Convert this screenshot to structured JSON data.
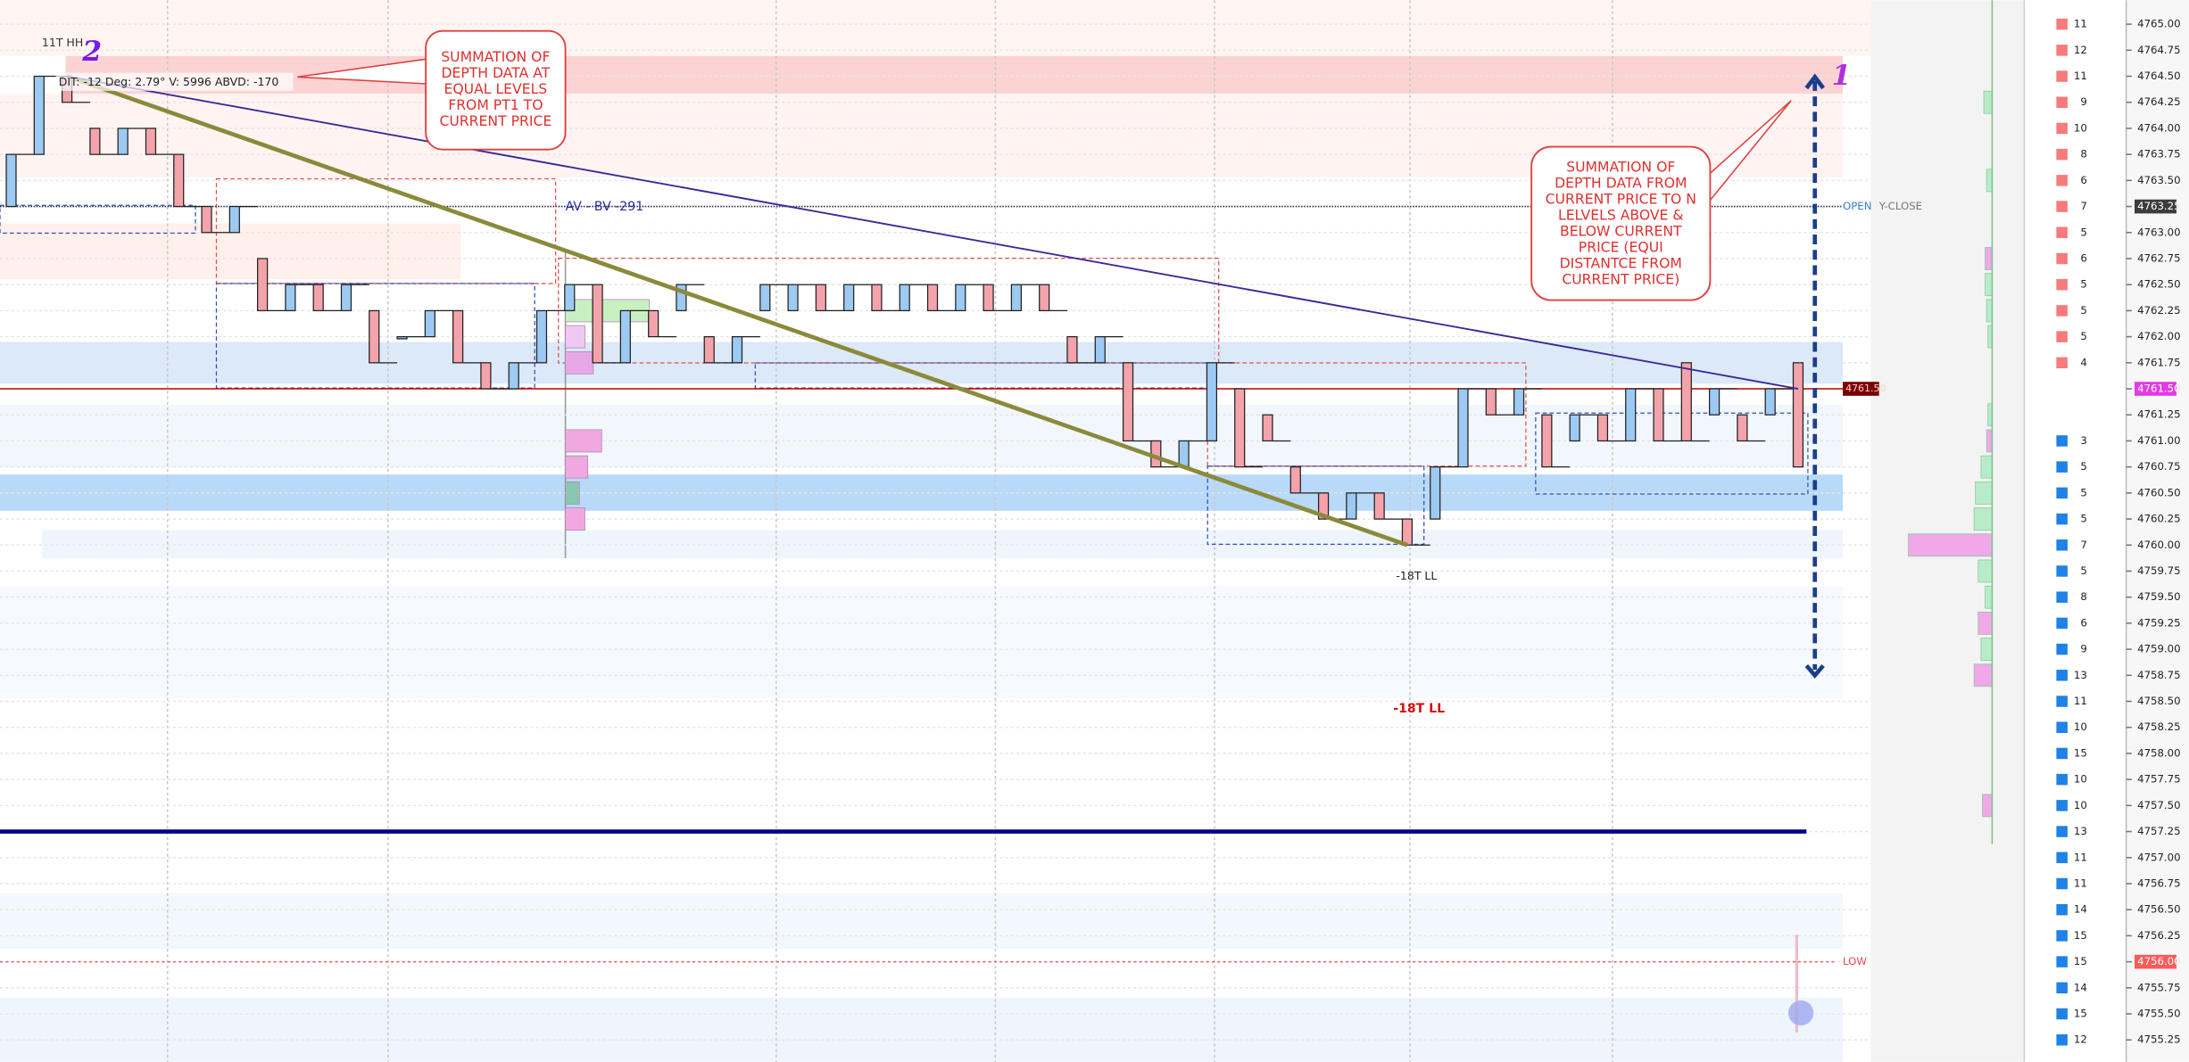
{
  "chart_data": {
    "type": "candlestick",
    "ylim": [
      4755.04,
      4765.23
    ],
    "yticks": [
      {
        "value": 4765,
        "label": "4765.00"
      },
      4764.75,
      {
        "value": 4764.5,
        "label": "4764.50"
      },
      4764.25,
      {
        "value": 4764,
        "label": "4764.00"
      },
      4763.75,
      {
        "value": 4763.5,
        "label": "4763.50"
      },
      4763.25,
      {
        "value": 4763,
        "label": "4763.00"
      },
      4762.75,
      {
        "value": 4762.5,
        "label": "4762.50"
      },
      4762.25,
      {
        "value": 4762,
        "label": "4762.00"
      },
      4761.75,
      {
        "value": 4761.5,
        "label": "4761.50"
      },
      4761.25,
      {
        "value": 4761,
        "label": "4761.00"
      },
      4760.75,
      {
        "value": 4760.5,
        "label": "4760.50"
      },
      4760.25,
      {
        "value": 4760,
        "label": "4760.00"
      },
      4759.75,
      {
        "value": 4759.5,
        "label": "4759.50"
      },
      4759.25,
      {
        "value": 4759,
        "label": "4759.00"
      },
      4758.75,
      {
        "value": 4758.5,
        "label": "4758.50"
      },
      4758.25,
      {
        "value": 4758,
        "label": "4758.00"
      },
      4757.75,
      {
        "value": 4757.5,
        "label": "4757.50"
      },
      4757.25,
      {
        "value": 4757,
        "label": "4757.00"
      },
      4756.75,
      {
        "value": 4756.5,
        "label": "4756.50"
      },
      4756.25,
      {
        "value": 4756,
        "label": "4756.00"
      },
      4755.75,
      {
        "value": 4755.5,
        "label": "4755.50"
      },
      4755.25
    ],
    "grid": true,
    "up_color": "#9ccaf2",
    "down_color": "#f4a3ab",
    "open": [
      4763.25,
      4763.75,
      4764.5,
      4764,
      4763.75,
      4764,
      4763.75,
      4763.25,
      4763,
      4762.75,
      4762.25,
      4762.5,
      4762.25,
      4762.25,
      4762,
      4762,
      4762.25,
      4761.75,
      4761.5,
      4761.75,
      4762.25,
      4762.5,
      4761.75,
      4762.25,
      4762.25,
      4762,
      4761.75,
      4762.25,
      4762.25,
      4762.5,
      4762.25,
      4762.5,
      4762.25,
      4762.5,
      4762.25,
      4762.5,
      4762.25,
      4762.5,
      4762,
      4761.75,
      4761.75,
      4761,
      4760.75,
      4761,
      4761.5,
      4761.25,
      4760.75,
      4760.5,
      4760.25,
      4760.5,
      4760.25,
      4760.25,
      4760.75,
      4761.5,
      4761.25,
      4761.25,
      4761,
      4761.25,
      4761,
      4761.5,
      4761.75,
      4761.25,
      4761.25,
      4761.25,
      4761.75
    ],
    "close": [
      4763.75,
      4764.5,
      4764.25,
      4763.75,
      4764,
      4763.75,
      4763.25,
      4763,
      4763.25,
      4762.25,
      4762.5,
      4762.25,
      4762.5,
      4761.75,
      4762,
      4762.25,
      4761.75,
      4761.5,
      4761.75,
      4762.25,
      4762.5,
      4761.75,
      4762.25,
      4762,
      4762.5,
      4761.75,
      4762,
      4762.5,
      4762.5,
      4762.25,
      4762.5,
      4762.25,
      4762.5,
      4762.25,
      4762.5,
      4762.25,
      4762.5,
      4762.25,
      4761.75,
      4762,
      4761,
      4760.75,
      4761,
      4761.75,
      4760.75,
      4761,
      4760.5,
      4760.25,
      4760.5,
      4760.25,
      4760,
      4760.75,
      4761.5,
      4761.25,
      4761.5,
      4760.75,
      4761.25,
      4761,
      4761.5,
      4761,
      4761,
      4761.5,
      4761,
      4761.5,
      4760.75
    ],
    "trendlines": [
      {
        "from": [
          2,
          4764.5
        ],
        "to": [
          50,
          4760
        ],
        "color": "#8a8a3a"
      },
      {
        "from": [
          2,
          4764.5
        ],
        "to": [
          64,
          4761.5
        ],
        "color": "#3a2a9a"
      }
    ],
    "levels": {
      "current": 4761.5,
      "y_close": 4763.25,
      "low": 4756,
      "support": 4757.25
    },
    "price_tags": [
      {
        "value": 4763.25,
        "label": "4763.25",
        "color": "#3c3c3c"
      },
      {
        "value": 4761.5,
        "label": "4761.50",
        "color": "#e23be2"
      },
      {
        "value": 4756,
        "label": "4756.00",
        "color": "#ff5a5a"
      }
    ],
    "depth_ladder": {
      "asks": {
        "color": "#f77b7b",
        "prices": [
          4765,
          4764.75,
          4764.5,
          4764.25,
          4764,
          4763.75,
          4763.5,
          4763.25,
          4763,
          4762.75,
          4762.5,
          4762.25,
          4762,
          4761.75
        ],
        "sizes": [
          11,
          12,
          11,
          9,
          10,
          8,
          6,
          7,
          5,
          6,
          5,
          5,
          5,
          4
        ]
      },
      "bids": {
        "color": "#1e82e6",
        "prices": [
          4761,
          4760.75,
          4760.5,
          4760.25,
          4760,
          4759.75,
          4759.5,
          4759.25,
          4759,
          4758.75,
          4758.5,
          4758.25,
          4758,
          4757.75,
          4757.5,
          4757.25,
          4757,
          4756.75,
          4756.5,
          4756.25,
          4756,
          4755.75,
          4755.5,
          4755.25
        ],
        "sizes": [
          3,
          5,
          5,
          5,
          7,
          5,
          8,
          6,
          9,
          13,
          11,
          10,
          15,
          10,
          10,
          13,
          11,
          11,
          14,
          15,
          15,
          14,
          15,
          12
        ]
      }
    },
    "volume_profile": {
      "prices": [
        4764.25,
        4763.5,
        4762.75,
        4762.5,
        4762.25,
        4762,
        4761.25,
        4761,
        4760.75,
        4760.5,
        4760.25,
        4760,
        4759.75,
        4759.5,
        4759.25,
        4759,
        4758.75,
        4757.5
      ],
      "sizes": [
        6,
        4,
        5,
        5,
        4,
        3,
        3,
        4,
        8,
        12,
        13,
        60,
        10,
        5,
        10,
        8,
        13,
        7
      ],
      "colors": [
        "#b8ecc8",
        "#b8ecc8",
        "#f0a8e8",
        "#b8ecc8",
        "#b8ecc8",
        "#b8ecc8",
        "#b8ecc8",
        "#f0a8e8",
        "#b8ecc8",
        "#b8ecc8",
        "#b8ecc8",
        "#f0a8e8",
        "#b8ecc8",
        "#b8ecc8",
        "#f0a8e8",
        "#b8ecc8",
        "#f0a8e8",
        "#f0a8e8"
      ]
    },
    "session_profile": {
      "prices": [
        4762.25,
        4762,
        4761.75,
        4761,
        4760.75,
        4760.5,
        4760.25
      ],
      "sizes": [
        60,
        14,
        20,
        26,
        16,
        10,
        14
      ],
      "colors": [
        "#c8f0c0",
        "#f0c8f0",
        "#e8a8e8",
        "#f0a8e0",
        "#f0a8e0",
        "#88c8b0",
        "#f0a8e0"
      ]
    },
    "annotations": {
      "hh": "11T HH",
      "point2": "2",
      "point1": "1",
      "stats": "DIT: -12  Deg: 2.79°  V: 5996  ABVD: -170",
      "av_bv": "AV - BV -291",
      "ll_black": "-18T LL",
      "ll_red": "-18T LL",
      "open": "OPEN",
      "y_close": "Y-CLOSE",
      "low": "LOW",
      "callout_left": [
        "SUMMATION OF",
        "DEPTH DATA AT",
        "EQUAL LEVELS",
        "FROM PT1 TO",
        "CURRENT PRICE"
      ],
      "callout_right": [
        "SUMMATION OF",
        "DEPTH DATA FROM",
        "CURRENT PRICE TO N",
        "LELVELS ABOVE &",
        "BELOW CURRENT",
        "PRICE (EQUI",
        "DISTANTCE FROM",
        "CURRENT PRICE)"
      ]
    }
  }
}
